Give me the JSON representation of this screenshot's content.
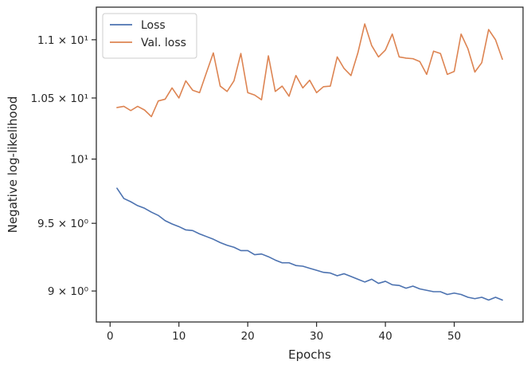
{
  "chart_data": {
    "type": "line",
    "xlabel": "Epochs",
    "ylabel": "Negative log-likelihood",
    "y_scale": "log",
    "xlim": [
      -2,
      60
    ],
    "ylim": [
      8.78,
      11.29
    ],
    "grid": false,
    "legend_placement": "top-left",
    "x_ticks": [
      {
        "value": 0,
        "label": "0"
      },
      {
        "value": 10,
        "label": "10"
      },
      {
        "value": 20,
        "label": "20"
      },
      {
        "value": 30,
        "label": "30"
      },
      {
        "value": 40,
        "label": "40"
      },
      {
        "value": 50,
        "label": "50"
      }
    ],
    "y_ticks": [
      {
        "value": 9.0,
        "label": "9 × 10⁰"
      },
      {
        "value": 9.5,
        "label": "9.5 × 10⁰"
      },
      {
        "value": 10.0,
        "label": "10¹"
      },
      {
        "value": 10.5,
        "label": "1.05 × 10¹"
      },
      {
        "value": 11.0,
        "label": "1.1 × 10¹"
      }
    ],
    "x": [
      1,
      2,
      3,
      4,
      5,
      6,
      7,
      8,
      9,
      10,
      11,
      12,
      13,
      14,
      15,
      16,
      17,
      18,
      19,
      20,
      21,
      22,
      23,
      24,
      25,
      26,
      27,
      28,
      29,
      30,
      31,
      32,
      33,
      34,
      35,
      36,
      37,
      38,
      39,
      40,
      41,
      42,
      43,
      44,
      45,
      46,
      47,
      48,
      49,
      50,
      51,
      52,
      53,
      54,
      55,
      56,
      57
    ],
    "series": [
      {
        "name": "Loss",
        "color": "#4c72b0",
        "values": [
          9.77,
          9.69,
          9.665,
          9.635,
          9.615,
          9.585,
          9.56,
          9.52,
          9.495,
          9.475,
          9.45,
          9.445,
          9.42,
          9.4,
          9.38,
          9.355,
          9.335,
          9.32,
          9.295,
          9.295,
          9.265,
          9.27,
          9.25,
          9.225,
          9.205,
          9.205,
          9.185,
          9.18,
          9.165,
          9.15,
          9.135,
          9.13,
          9.11,
          9.125,
          9.105,
          9.085,
          9.065,
          9.085,
          9.055,
          9.07,
          9.045,
          9.04,
          9.02,
          9.035,
          9.015,
          9.005,
          8.995,
          8.995,
          8.975,
          8.985,
          8.975,
          8.955,
          8.945,
          8.955,
          8.935,
          8.955,
          8.935
        ]
      },
      {
        "name": "Val. loss",
        "color": "#dd8452",
        "values": [
          10.42,
          10.43,
          10.395,
          10.43,
          10.4,
          10.345,
          10.475,
          10.49,
          10.585,
          10.5,
          10.645,
          10.565,
          10.545,
          10.715,
          10.885,
          10.6,
          10.555,
          10.645,
          10.88,
          10.545,
          10.525,
          10.485,
          10.86,
          10.555,
          10.6,
          10.515,
          10.69,
          10.585,
          10.65,
          10.545,
          10.595,
          10.6,
          10.85,
          10.75,
          10.69,
          10.885,
          11.14,
          10.95,
          10.85,
          10.91,
          11.05,
          10.85,
          10.84,
          10.835,
          10.81,
          10.7,
          10.9,
          10.88,
          10.7,
          10.725,
          11.05,
          10.92,
          10.72,
          10.8,
          11.09,
          11.0,
          10.83
        ]
      }
    ]
  }
}
